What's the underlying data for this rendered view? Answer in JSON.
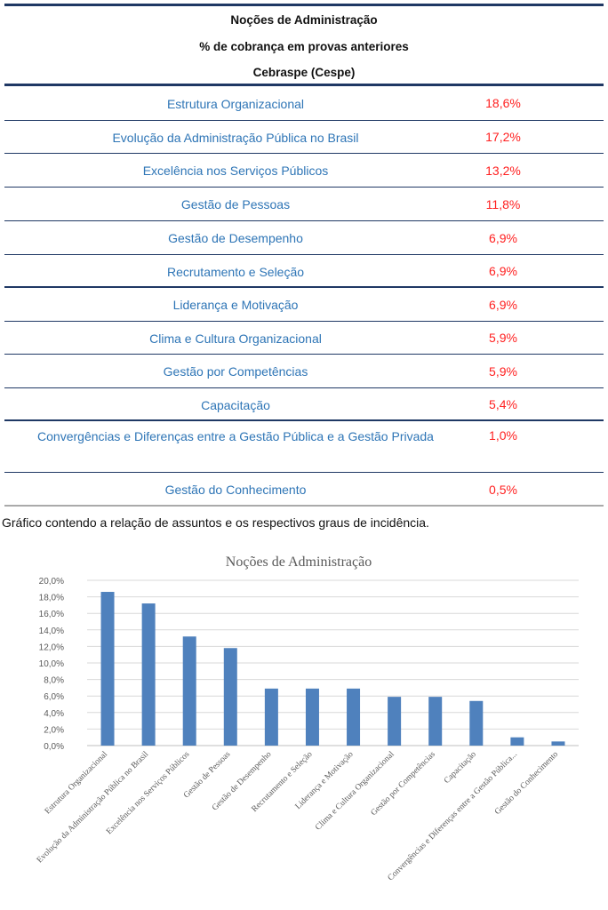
{
  "header": {
    "title": "Noções de Administração",
    "subtitle": "% de cobrança em provas anteriores",
    "source": "Cebraspe (Cespe)"
  },
  "rows": [
    {
      "label": "Estrutura Organizacional",
      "value": "18,6%"
    },
    {
      "label": "Evolução da Administração Pública no Brasil",
      "value": "17,2%"
    },
    {
      "label": "Excelência nos Serviços Públicos",
      "value": "13,2%"
    },
    {
      "label": "Gestão de Pessoas",
      "value": "11,8%"
    },
    {
      "label": "Gestão de Desempenho",
      "value": "6,9%"
    },
    {
      "label": "Recrutamento e Seleção",
      "value": "6,9%"
    },
    {
      "label": "Liderança e Motivação",
      "value": "6,9%"
    },
    {
      "label": "Clima e Cultura Organizacional",
      "value": "5,9%"
    },
    {
      "label": "Gestão por Competências",
      "value": "5,9%"
    },
    {
      "label": "Capacitação",
      "value": "5,4%"
    },
    {
      "label": "Convergências e Diferenças entre a Gestão Pública e a Gestão Privada",
      "value": "1,0%"
    },
    {
      "label": "Gestão do Conhecimento",
      "value": "0,5%"
    }
  ],
  "caption": "Gráfico contendo a relação de assuntos e os respectivos graus de incidência.",
  "chart_data": {
    "type": "bar",
    "title": "Noções de Administração",
    "categories": [
      "Estrutura Organizacional",
      "Evolução da Administração Pública no Brasil",
      "Excelência nos Serviços Públicos",
      "Gestão de Pessoas",
      "Gestão de Desempenho",
      "Recrutamento e Seleção",
      "Liderança e Motivação",
      "Clima e Cultura Organizacional",
      "Gestão por Competências",
      "Capacitação",
      "Convergências e Diferenças entre a Gestão Pública...",
      "Gestão do Conhecimento"
    ],
    "values": [
      18.6,
      17.2,
      13.2,
      11.8,
      6.9,
      6.9,
      6.9,
      5.9,
      5.9,
      5.4,
      1.0,
      0.5
    ],
    "ylim": [
      0,
      20
    ],
    "yticks": [
      "0,0%",
      "2,0%",
      "4,0%",
      "6,0%",
      "8,0%",
      "10,0%",
      "12,0%",
      "14,0%",
      "16,0%",
      "18,0%",
      "20,0%"
    ],
    "grid": true,
    "bar_color": "#4f81bd"
  }
}
